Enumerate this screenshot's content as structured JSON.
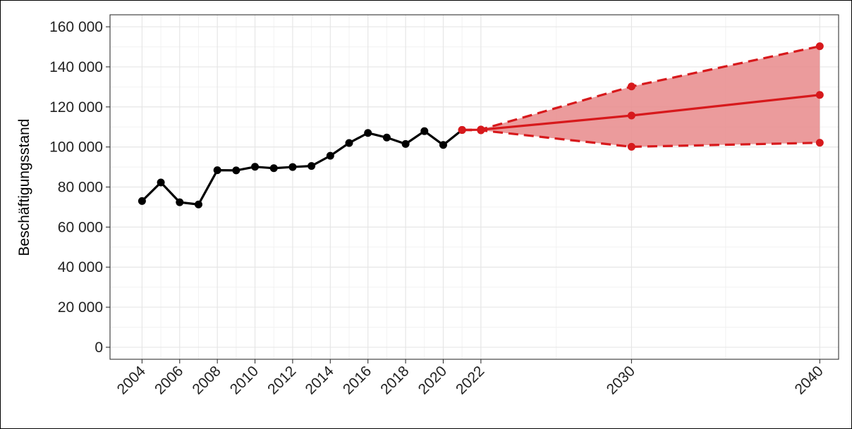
{
  "chart_data": {
    "type": "line",
    "title": "",
    "xlabel": "",
    "ylabel": "Beschäftigungsstand",
    "xlim": [
      2002.3,
      2041.0
    ],
    "ylim": [
      -6000,
      166000
    ],
    "x_ticks": [
      2004,
      2006,
      2008,
      2010,
      2012,
      2014,
      2016,
      2018,
      2020,
      2022,
      2030,
      2040
    ],
    "x_tick_labels": [
      "2004",
      "2006",
      "2008",
      "2010",
      "2012",
      "2014",
      "2016",
      "2018",
      "2020",
      "2022",
      "2030",
      "2040"
    ],
    "y_ticks": [
      0,
      20000,
      40000,
      60000,
      80000,
      100000,
      120000,
      140000,
      160000
    ],
    "y_tick_labels": [
      "0",
      "20 000",
      "40 000",
      "60 000",
      "80 000",
      "100 000",
      "120 000",
      "140 000",
      "160 000"
    ],
    "grid": true,
    "legend": "none",
    "series": [
      {
        "color": "#000000",
        "style": "solid",
        "x": [
          2004,
          2005,
          2006,
          2007,
          2008,
          2009,
          2010,
          2011,
          2012,
          2013,
          2014,
          2015,
          2016,
          2017,
          2018,
          2019,
          2020,
          2021
        ],
        "y": [
          73000,
          82300,
          72400,
          71300,
          88400,
          88300,
          90100,
          89400,
          90000,
          90500,
          95600,
          102000,
          107000,
          104700,
          101500,
          107900,
          101000,
          108500
        ]
      },
      {
        "color": "#d7191c",
        "style": "solid",
        "x": [
          2021,
          2022,
          2030,
          2040
        ],
        "y": [
          108500,
          108600,
          115700,
          126000
        ]
      },
      {
        "color": "#d7191c",
        "style": "dashed",
        "x": [
          2021,
          2022,
          2030,
          2040
        ],
        "y": [
          108500,
          108700,
          130200,
          150300
        ]
      },
      {
        "color": "#d7191c",
        "style": "dashed",
        "x": [
          2021,
          2022,
          2030,
          2040
        ],
        "y": [
          108500,
          108300,
          100100,
          102100
        ]
      }
    ],
    "band": {
      "color": "#e8898b",
      "x": [
        2021,
        2022,
        2030,
        2040
      ],
      "upper": [
        108500,
        108700,
        130200,
        150300
      ],
      "lower": [
        108500,
        108300,
        100100,
        102100
      ]
    }
  }
}
